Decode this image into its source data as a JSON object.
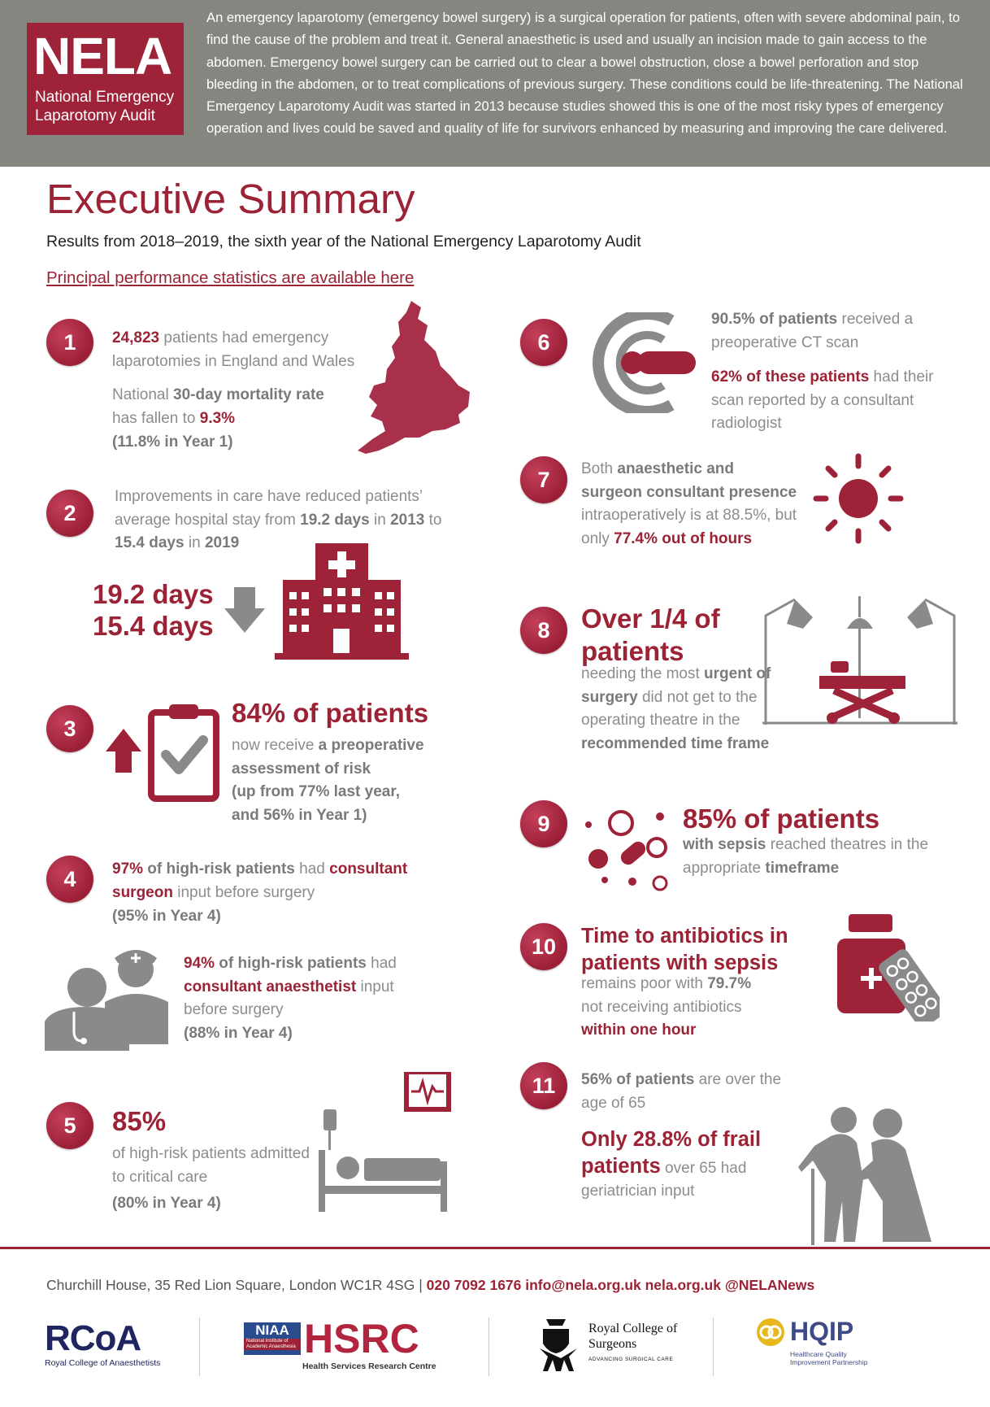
{
  "header": {
    "logo": {
      "acronym": "NELA",
      "name": "National Emergency Laparotomy Audit"
    },
    "intro": "An emergency laparotomy (emergency bowel surgery) is a surgical operation for patients, often with severe abdominal pain, to find the cause of the problem and treat it. General anaesthetic is used and usually an incision made to gain access to the abdomen. Emergency bowel surgery can be carried out to clear a bowel obstruction, close a bowel perforation and stop bleeding in the abdomen, or to treat complications of previous surgery. These conditions could be life-threatening. The National Emergency Laparotomy Audit was started in 2013 because studies showed this is one of the most risky types of emergency operation and lives could be saved and quality of life for survivors enhanced by measuring and improving the care delivered."
  },
  "title": "Executive Summary",
  "subtitle": "Results from 2018–2019, the sixth year of the National Emergency Laparotomy Audit",
  "link": "Principal performance statistics are available here",
  "items": [
    {
      "number": 1,
      "paragraphs": [
        [
          {
            "red": "24,823"
          },
          {
            "plain": " patients had emergency laparotomies in England and Wales"
          }
        ],
        [
          {
            "plain": "National "
          },
          {
            "bold": "30-day mortality rate"
          },
          {
            "plain": " has fallen to "
          },
          {
            "red": "9.3%"
          }
        ],
        [
          {
            "bold": "(11.8% in Year 1)"
          }
        ]
      ]
    },
    {
      "number": 2,
      "paragraphs": [
        [
          {
            "plain": "Improvements in care have reduced patients’ average hospital stay from "
          },
          {
            "bold": "19.2 days"
          },
          {
            "plain": " in "
          },
          {
            "bold": "2013"
          },
          {
            "plain": " to "
          },
          {
            "bold": "15.4 days"
          },
          {
            "plain": " in "
          },
          {
            "bold": "2019"
          }
        ],
        [
          {
            "big": "19.2 days"
          }
        ],
        [
          {
            "big": "15.4 days"
          }
        ]
      ]
    },
    {
      "number": 3,
      "paragraphs": [
        [
          {
            "big": "84% of patients"
          }
        ],
        [
          {
            "plain": "now receive "
          },
          {
            "bold": "a preoperative assessment of risk"
          }
        ],
        [
          {
            "bold": "(up from 77% last year, and 56% in Year 1)"
          }
        ]
      ]
    },
    {
      "number": 4,
      "paragraphs": [
        [
          {
            "red": "97%"
          },
          {
            "bold": " of high-risk patients"
          },
          {
            "plain": " had "
          },
          {
            "red": "consultant surgeon"
          },
          {
            "plain": " input before surgery"
          }
        ],
        [
          {
            "bold": "(95% in Year 4)"
          }
        ],
        [
          {
            "red": "94%"
          },
          {
            "bold": " of high-risk patients"
          },
          {
            "plain": " had "
          },
          {
            "red": "consultant anaesthetist"
          },
          {
            "plain": " input before surgery"
          }
        ],
        [
          {
            "bold": "(88% in Year 4)"
          }
        ]
      ]
    },
    {
      "number": 5,
      "paragraphs": [
        [
          {
            "big": "85%"
          }
        ],
        [
          {
            "plain": "of high-risk patients admitted to critical care"
          }
        ],
        [
          {
            "bold": "(80% in Year 4)"
          }
        ]
      ]
    },
    {
      "number": 6,
      "paragraphs": [
        [
          {
            "bold": "90.5% of patients"
          },
          {
            "plain": " received a preoperative CT scan"
          }
        ],
        [
          {
            "red": "62% of these patients"
          },
          {
            "plain": " had their scan reported by a consultant radiologist"
          }
        ]
      ]
    },
    {
      "number": 7,
      "paragraphs": [
        [
          {
            "plain": "Both "
          },
          {
            "bold": "anaesthetic and surgeon consultant presence"
          },
          {
            "plain": " intraoperatively is at 88.5%, but only "
          },
          {
            "red": "77.4% out of hours"
          }
        ]
      ]
    },
    {
      "number": 8,
      "paragraphs": [
        [
          {
            "big": "Over 1/4 of patients"
          }
        ],
        [
          {
            "plain": "needing the most "
          },
          {
            "bold": "urgent of surgery"
          },
          {
            "plain": " did not get to the operating theatre in the "
          },
          {
            "bold": "recommended time frame"
          }
        ]
      ]
    },
    {
      "number": 9,
      "paragraphs": [
        [
          {
            "big": "85% of patients"
          }
        ],
        [
          {
            "bold": "with sepsis"
          },
          {
            "plain": " reached theatres in the appropriate "
          },
          {
            "bold": "timeframe"
          }
        ]
      ]
    },
    {
      "number": 10,
      "paragraphs": [
        [
          {
            "redl": "Time to antibiotics in patients with sepsis"
          }
        ],
        [
          {
            "plain": "remains poor with "
          },
          {
            "bold": "79.7%"
          },
          {
            "plain": " not receiving antibiotics "
          },
          {
            "red": "within one hour"
          }
        ]
      ]
    },
    {
      "number": 11,
      "paragraphs": [
        [
          {
            "bold": "56% of patients"
          },
          {
            "plain": " are over the age of 65"
          }
        ],
        [
          {
            "redl": "Only 28.8% of frail patients"
          },
          {
            "plain": " over 65 had geriatrician input"
          }
        ]
      ]
    }
  ],
  "footer": {
    "address": "Churchill House, 35 Red Lion Square, London WC1R 4SG",
    "separator": "|",
    "contact": "020 7092 1676 info@nela.org.uk nela.org.uk @NELANews",
    "logos": [
      {
        "mark": "RCoA",
        "name": "Royal College of Anaesthetists"
      },
      {
        "mark": "NIAA",
        "name": "National Institute of Academic Anaesthesia"
      },
      {
        "mark": "HSRC",
        "name": "Health Services Research Centre"
      },
      {
        "name": "Royal College of Surgeons",
        "tagline": "ADVANCING SURGICAL CARE"
      },
      {
        "mark": "HQIP",
        "name": "Healthcare Quality Improvement Partnership"
      }
    ]
  }
}
